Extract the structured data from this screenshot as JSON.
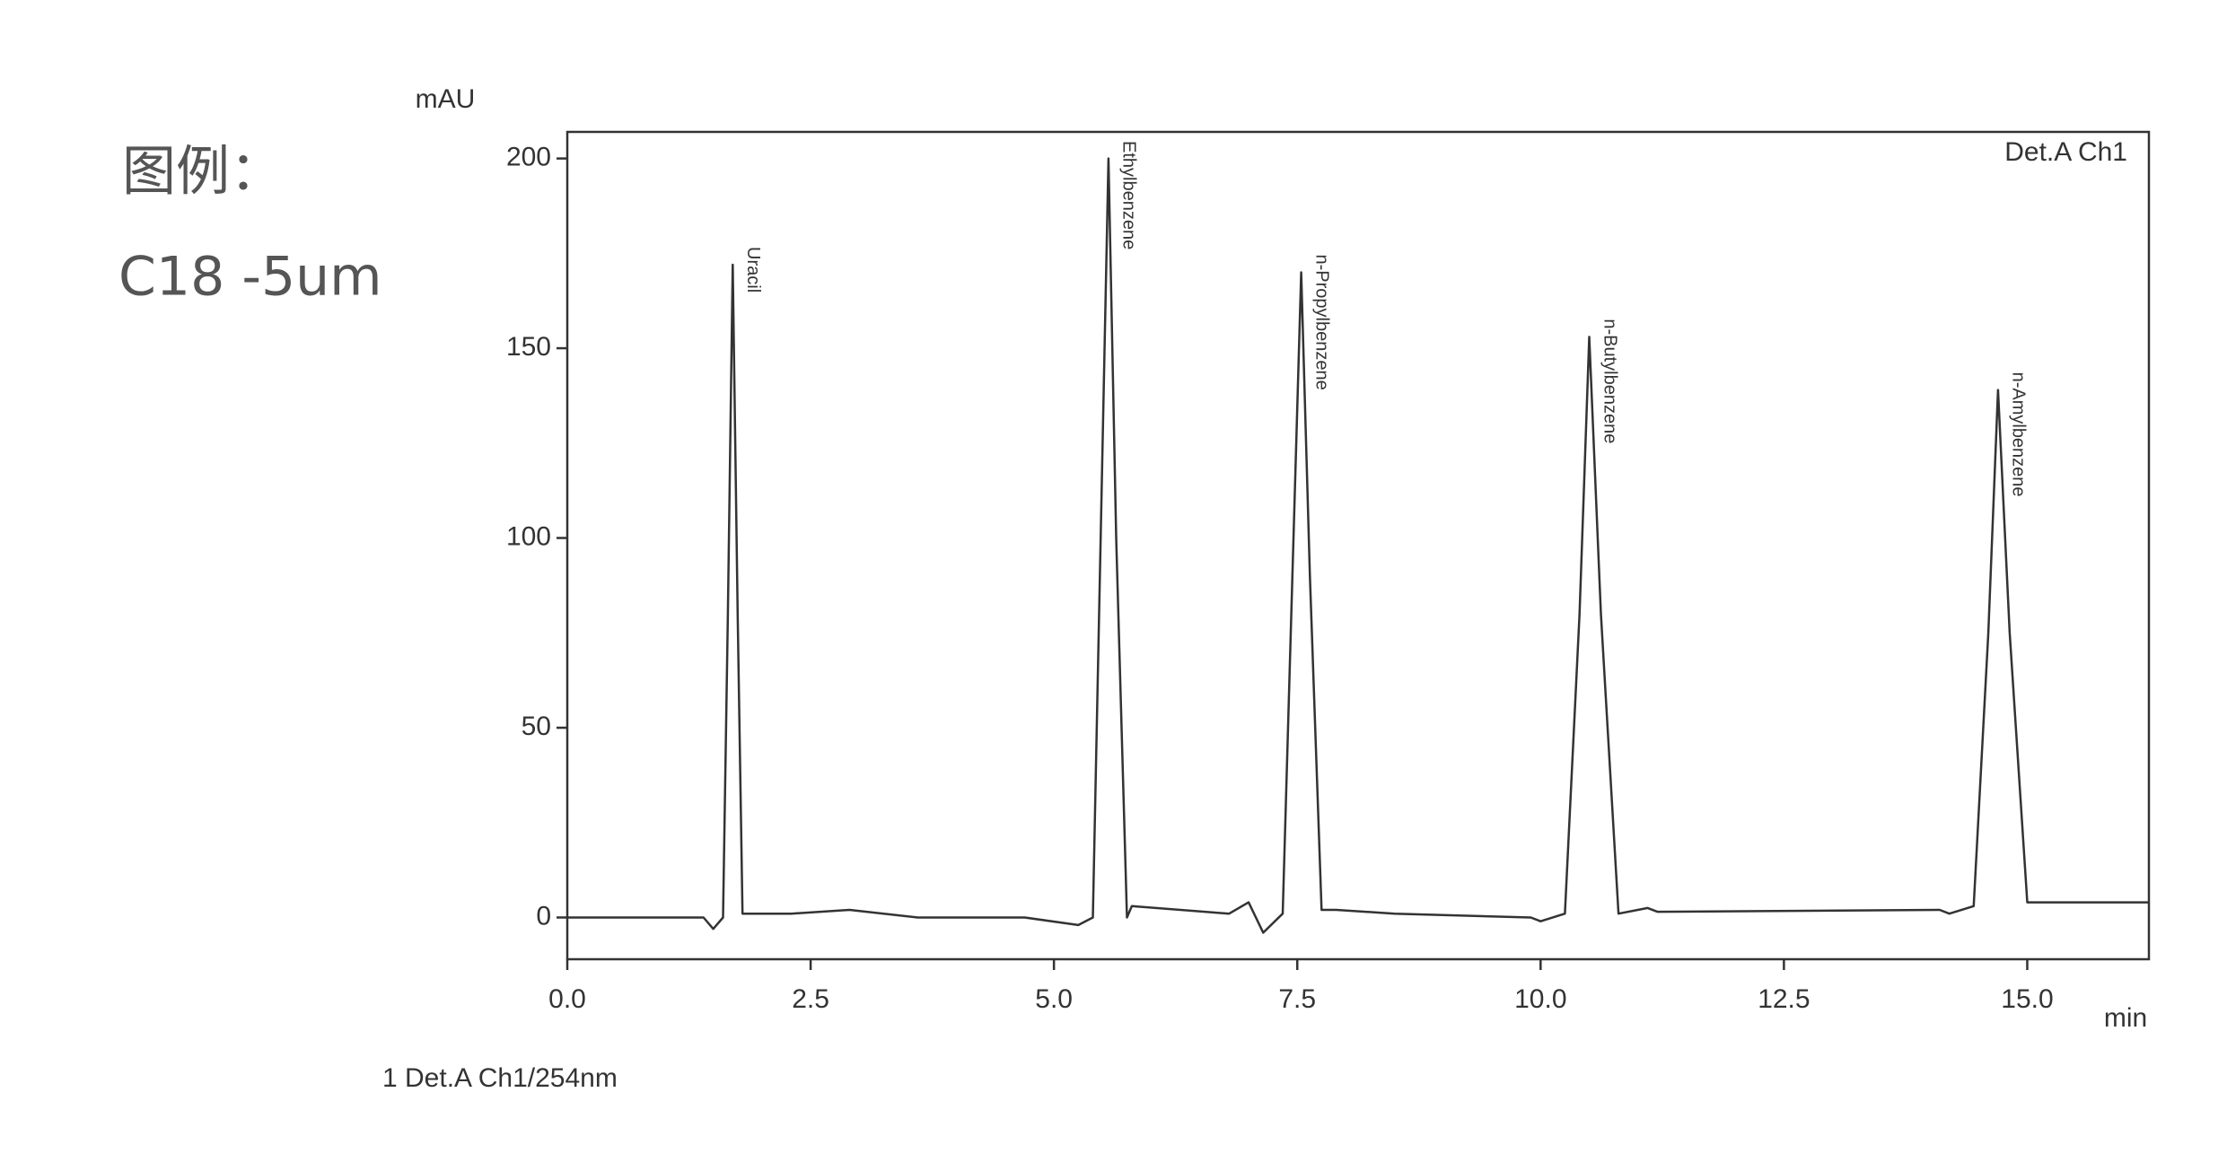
{
  "chart_data": {
    "type": "line",
    "legend_heading": "图例：",
    "column": "C18 -5um",
    "y_label": "mAU",
    "x_label": "min",
    "detector": "Det.A Ch1",
    "footer": "1 Det.A Ch1/254nm",
    "x": [
      0,
      1.4,
      1.5,
      1.6,
      1.65,
      1.7,
      1.75,
      1.8,
      2.3,
      2.9,
      3.6,
      4.7,
      5.25,
      5.4,
      5.48,
      5.56,
      5.64,
      5.75,
      5.8,
      6.8,
      7.0,
      7.15,
      7.35,
      7.45,
      7.54,
      7.63,
      7.75,
      7.9,
      8.5,
      9.9,
      10.0,
      10.25,
      10.4,
      10.5,
      10.62,
      10.8,
      11.1,
      11.2,
      14.1,
      14.2,
      14.45,
      14.6,
      14.7,
      14.82,
      15.0,
      15.3,
      16.25
    ],
    "series": [
      {
        "color": "#333333",
        "values": [
          0,
          0,
          -3,
          0,
          80,
          172,
          80,
          1,
          1,
          2,
          0,
          0,
          -2,
          0,
          100,
          200,
          100,
          0,
          3,
          1,
          4,
          -4,
          1,
          90,
          170,
          90,
          2,
          2,
          1,
          0,
          -1,
          1,
          80,
          153,
          80,
          1,
          2.5,
          1.5,
          2,
          1,
          3,
          75,
          139,
          75,
          4,
          4,
          4
        ]
      }
    ],
    "peak_labels": [
      {
        "text": "Uracil",
        "x": 1.7
      },
      {
        "text": "Ethylbenzene",
        "x": 5.56
      },
      {
        "text": "n-Propylbenzene",
        "x": 7.54
      },
      {
        "text": "n-Butylbenzene",
        "x": 10.5
      },
      {
        "text": "n-Amylbenzene",
        "x": 14.7
      }
    ],
    "xlim": [
      0,
      16.25
    ],
    "ylim": [
      -11,
      207
    ],
    "xticks": [
      {
        "value": 0,
        "label": "0.0"
      },
      2.5,
      {
        "value": 5,
        "label": "5.0"
      },
      7.5,
      {
        "value": 10,
        "label": "10.0"
      },
      12.5,
      {
        "value": 15,
        "label": "15.0"
      }
    ],
    "yticks": [
      0,
      50,
      100,
      150,
      200
    ]
  }
}
